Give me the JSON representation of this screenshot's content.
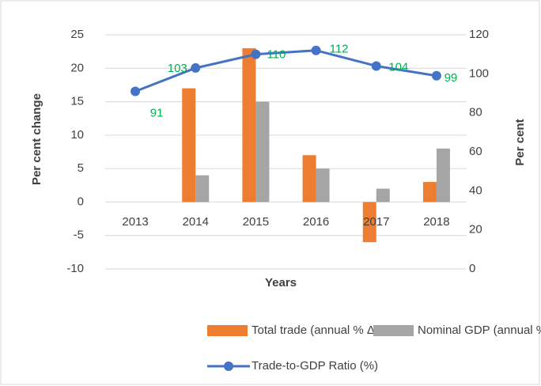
{
  "chart_data": {
    "type": "bar",
    "categories": [
      "2013",
      "2014",
      "2015",
      "2016",
      "2017",
      "2018"
    ],
    "series": [
      {
        "name": "Total trade (annual % Δ)",
        "color": "#ed7d31",
        "type": "bar",
        "values": [
          null,
          17,
          23,
          7,
          -6,
          3
        ]
      },
      {
        "name": "Nominal GDP (annual % Δ)",
        "color": "#a5a5a5",
        "type": "bar",
        "values": [
          null,
          4,
          15,
          5,
          2,
          8
        ]
      },
      {
        "name": "Trade-to-GDP Ratio (%)",
        "color": "#4472c4",
        "type": "line",
        "axis": "y2",
        "label_color": "#00b050",
        "values": [
          91,
          103,
          110,
          112,
          104,
          99
        ]
      }
    ],
    "xlabel": "Years",
    "ylabel": "Per cent change",
    "y2label": "Per cent",
    "ylim": [
      -10,
      25
    ],
    "yticks": [
      -10,
      -5,
      0,
      5,
      10,
      15,
      20,
      25
    ],
    "y2lim": [
      0,
      120
    ],
    "y2ticks": [
      0,
      20,
      40,
      60,
      80,
      100,
      120
    ],
    "grid": true,
    "legend": "bottom"
  }
}
